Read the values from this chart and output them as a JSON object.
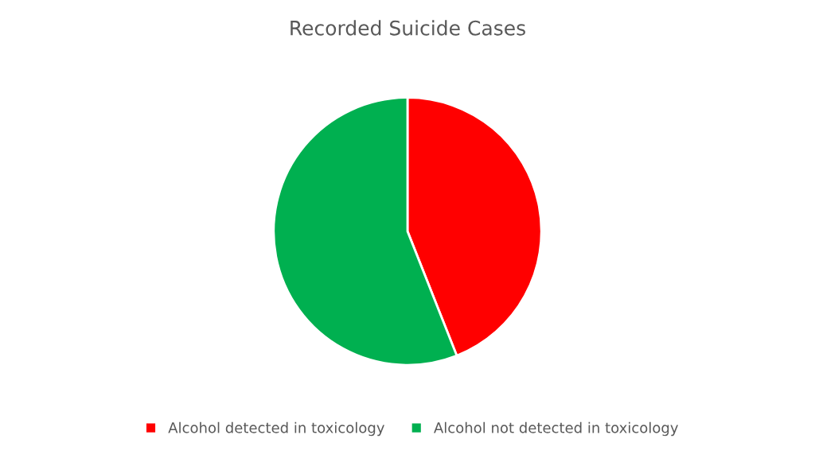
{
  "chart_data": {
    "type": "pie",
    "title": "Recorded Suicide Cases",
    "categories": [
      "Alcohol detected in toxicology",
      "Alcohol not detected in toxicology"
    ],
    "values": [
      44,
      56
    ],
    "colors": [
      "#ff0000",
      "#00b050"
    ],
    "legend": "bottom"
  }
}
